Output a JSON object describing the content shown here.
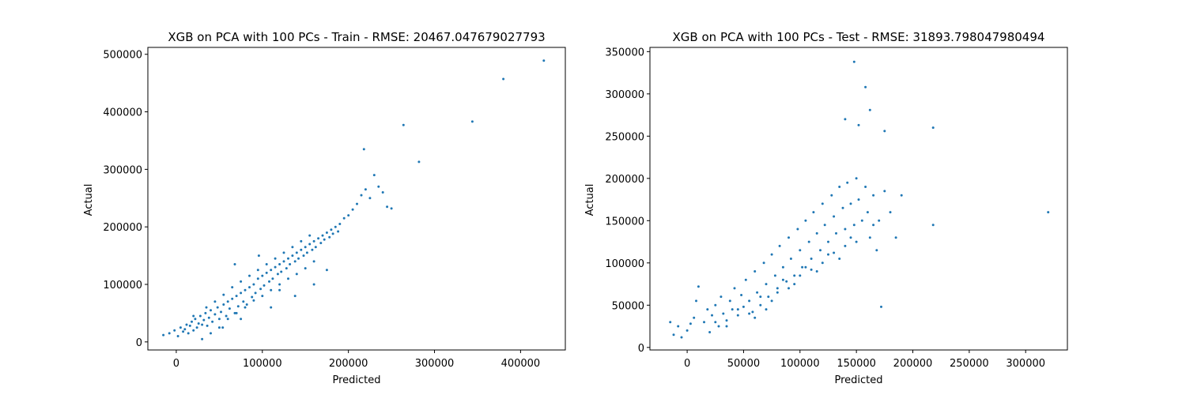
{
  "chart_data": [
    {
      "type": "scatter",
      "title": "XGB on PCA with 100 PCs - Train - RMSE: 20467.047679027793",
      "xlabel": "Predicted",
      "ylabel": "Actual",
      "xlim": [
        -33000,
        452000
      ],
      "ylim": [
        -14000,
        512000
      ],
      "xticks": [
        0,
        100000,
        200000,
        300000,
        400000
      ],
      "xtick_labels": [
        "0",
        "100000",
        "200000",
        "300000",
        "400000"
      ],
      "yticks": [
        0,
        100000,
        200000,
        300000,
        400000,
        500000
      ],
      "ytick_labels": [
        "0",
        "100000",
        "200000",
        "300000",
        "400000",
        "500000"
      ],
      "grid": false,
      "marker_color": "#1f77b4",
      "series": [
        {
          "x": [
            -15000,
            -8000,
            -2000,
            2000,
            5000,
            8000,
            10000,
            12000,
            14000,
            16000,
            18000,
            20000,
            22000,
            24000,
            26000,
            28000,
            30000,
            32000,
            34000,
            36000,
            38000,
            40000,
            42000,
            45000,
            48000,
            50000,
            52000,
            55000,
            58000,
            60000,
            62000,
            65000,
            68000,
            70000,
            72000,
            75000,
            78000,
            80000,
            82000,
            85000,
            88000,
            90000,
            92000,
            95000,
            98000,
            100000,
            102000,
            105000,
            108000,
            110000,
            112000,
            115000,
            118000,
            120000,
            122000,
            125000,
            128000,
            130000,
            132000,
            135000,
            138000,
            140000,
            142000,
            145000,
            148000,
            150000,
            152000,
            155000,
            158000,
            160000,
            162000,
            165000,
            168000,
            170000,
            172000,
            175000,
            178000,
            180000,
            182000,
            185000,
            188000,
            190000,
            195000,
            200000,
            205000,
            210000,
            215000,
            220000,
            225000,
            230000,
            235000,
            240000,
            245000,
            250000,
            30000,
            40000,
            50000,
            60000,
            70000,
            80000,
            90000,
            100000,
            110000,
            120000,
            130000,
            140000,
            150000,
            160000,
            20000,
            35000,
            45000,
            55000,
            65000,
            75000,
            85000,
            95000,
            105000,
            115000,
            125000,
            135000,
            145000,
            155000,
            68000,
            96000,
            120000,
            75000,
            54000,
            110000,
            138000,
            160000,
            175000,
            264000,
            282000,
            344000,
            380000,
            427000,
            218000
          ],
          "y": [
            12000,
            15000,
            20000,
            10000,
            25000,
            18000,
            22000,
            30000,
            15000,
            28000,
            35000,
            20000,
            40000,
            25000,
            32000,
            45000,
            30000,
            38000,
            50000,
            28000,
            42000,
            55000,
            35000,
            48000,
            60000,
            40000,
            52000,
            65000,
            45000,
            70000,
            58000,
            75000,
            50000,
            80000,
            62000,
            85000,
            70000,
            90000,
            65000,
            95000,
            78000,
            100000,
            85000,
            110000,
            92000,
            115000,
            98000,
            120000,
            105000,
            125000,
            110000,
            130000,
            118000,
            135000,
            122000,
            140000,
            128000,
            145000,
            135000,
            150000,
            140000,
            155000,
            145000,
            160000,
            150000,
            165000,
            155000,
            170000,
            160000,
            175000,
            165000,
            180000,
            172000,
            185000,
            178000,
            190000,
            182000,
            195000,
            188000,
            200000,
            192000,
            205000,
            215000,
            220000,
            230000,
            240000,
            255000,
            265000,
            250000,
            290000,
            270000,
            260000,
            235000,
            232000,
            5000,
            15000,
            25000,
            40000,
            50000,
            60000,
            72000,
            80000,
            90000,
            100000,
            110000,
            118000,
            128000,
            140000,
            45000,
            60000,
            70000,
            82000,
            95000,
            105000,
            115000,
            125000,
            135000,
            145000,
            155000,
            165000,
            175000,
            185000,
            135000,
            150000,
            90000,
            40000,
            25000,
            60000,
            80000,
            100000,
            125000,
            377000,
            313000,
            383000,
            457000,
            489000,
            335000
          ]
        }
      ]
    },
    {
      "type": "scatter",
      "title": "XGB on PCA with 100 PCs - Test - RMSE: 31893.798047980494",
      "xlabel": "Predicted",
      "ylabel": "Actual",
      "xlim": [
        -33000,
        337000
      ],
      "ylim": [
        -3000,
        355000
      ],
      "xticks": [
        0,
        50000,
        100000,
        150000,
        200000,
        250000,
        300000
      ],
      "xtick_labels": [
        "0",
        "50000",
        "100000",
        "150000",
        "200000",
        "250000",
        "300000"
      ],
      "yticks": [
        0,
        50000,
        100000,
        150000,
        200000,
        250000,
        300000,
        350000
      ],
      "ytick_labels": [
        "0",
        "50000",
        "100000",
        "150000",
        "200000",
        "250000",
        "300000",
        "350000"
      ],
      "grid": false,
      "marker_color": "#1f77b4",
      "series": [
        {
          "x": [
            -15000,
            -12000,
            -8000,
            -5000,
            0,
            3000,
            6000,
            8000,
            10000,
            15000,
            18000,
            20000,
            22000,
            25000,
            28000,
            30000,
            32000,
            35000,
            38000,
            40000,
            42000,
            45000,
            48000,
            50000,
            52000,
            55000,
            58000,
            60000,
            62000,
            65000,
            68000,
            70000,
            72000,
            75000,
            78000,
            80000,
            82000,
            85000,
            88000,
            90000,
            92000,
            95000,
            98000,
            100000,
            102000,
            105000,
            108000,
            110000,
            112000,
            115000,
            118000,
            120000,
            122000,
            125000,
            128000,
            130000,
            132000,
            135000,
            138000,
            140000,
            142000,
            145000,
            148000,
            150000,
            152000,
            155000,
            158000,
            160000,
            162000,
            165000,
            168000,
            170000,
            175000,
            180000,
            185000,
            190000,
            25000,
            45000,
            65000,
            85000,
            105000,
            125000,
            145000,
            35000,
            55000,
            75000,
            95000,
            115000,
            135000,
            60000,
            80000,
            100000,
            120000,
            140000,
            70000,
            90000,
            110000,
            130000,
            150000,
            165000,
            140000,
            148000,
            152000,
            158000,
            162000,
            175000,
            218000,
            320000,
            218000,
            172000
          ],
          "y": [
            30000,
            15000,
            25000,
            12000,
            20000,
            28000,
            35000,
            55000,
            72000,
            30000,
            45000,
            18000,
            38000,
            50000,
            25000,
            60000,
            40000,
            32000,
            55000,
            45000,
            70000,
            38000,
            62000,
            48000,
            80000,
            55000,
            42000,
            90000,
            65000,
            50000,
            100000,
            75000,
            60000,
            110000,
            85000,
            70000,
            120000,
            95000,
            78000,
            130000,
            105000,
            85000,
            140000,
            115000,
            95000,
            150000,
            125000,
            105000,
            160000,
            135000,
            115000,
            170000,
            145000,
            125000,
            180000,
            155000,
            135000,
            190000,
            165000,
            140000,
            195000,
            170000,
            145000,
            200000,
            175000,
            150000,
            190000,
            160000,
            130000,
            180000,
            115000,
            150000,
            185000,
            160000,
            130000,
            180000,
            30000,
            45000,
            60000,
            80000,
            95000,
            110000,
            130000,
            25000,
            40000,
            55000,
            75000,
            90000,
            105000,
            35000,
            65000,
            85000,
            100000,
            120000,
            45000,
            70000,
            92000,
            112000,
            125000,
            145000,
            270000,
            338000,
            263000,
            308000,
            281000,
            256000,
            260000,
            160000,
            145000,
            48000
          ]
        }
      ]
    }
  ]
}
